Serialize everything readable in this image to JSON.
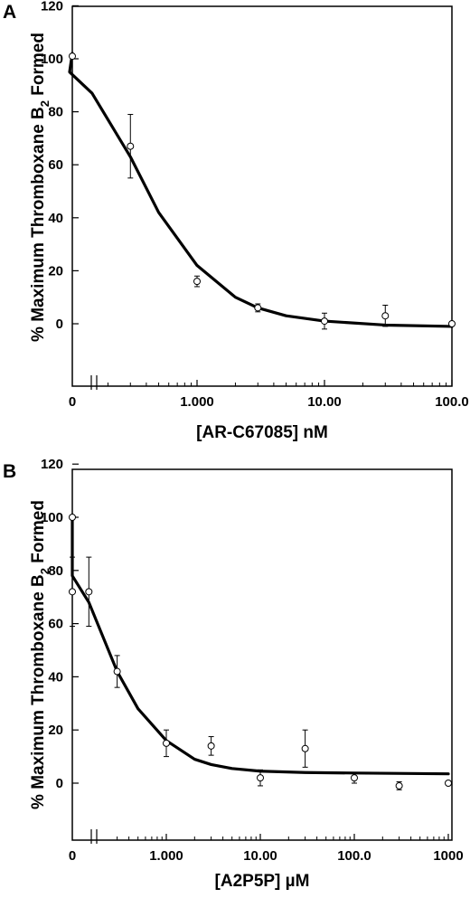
{
  "chart_data": [
    {
      "type": "scatter",
      "panel": "A",
      "xlabel": "[AR-C67085] nM",
      "ylabel": "% Maximum Thromboxane B2 Formed",
      "ylim": [
        -20,
        120
      ],
      "yticks": [
        0,
        20,
        40,
        60,
        80,
        100,
        120
      ],
      "x_scale": "log with axis break",
      "xticks": [
        {
          "value": 0,
          "label": "0"
        },
        {
          "value": 1,
          "label": "1.000"
        },
        {
          "value": 10,
          "label": "10.00"
        },
        {
          "value": 100,
          "label": "100.0"
        }
      ],
      "points": [
        {
          "x": 0,
          "y": 101,
          "err": 0
        },
        {
          "x": 0.3,
          "y": 67,
          "err": 12
        },
        {
          "x": 1,
          "y": 16,
          "err": 2
        },
        {
          "x": 3,
          "y": 6,
          "err": 1.5
        },
        {
          "x": 10,
          "y": 1,
          "err": 3
        },
        {
          "x": 30,
          "y": 3,
          "err": 4
        },
        {
          "x": 100,
          "y": 0,
          "err": 0
        }
      ],
      "fit_curve": [
        [
          0,
          102
        ],
        [
          0.1,
          95
        ],
        [
          0.15,
          87
        ],
        [
          0.3,
          63
        ],
        [
          0.5,
          42
        ],
        [
          1,
          22
        ],
        [
          2,
          10
        ],
        [
          3,
          6
        ],
        [
          5,
          3
        ],
        [
          10,
          1
        ],
        [
          30,
          -0.5
        ],
        [
          100,
          -1
        ]
      ],
      "grid": false
    },
    {
      "type": "scatter",
      "panel": "B",
      "xlabel": "[A2P5P] µM",
      "ylabel": "% Maximum Thromboxane B2 Formed",
      "ylim": [
        -20,
        120
      ],
      "yticks": [
        0,
        20,
        40,
        60,
        80,
        100,
        120
      ],
      "x_scale": "log with axis break",
      "xticks": [
        {
          "value": 0,
          "label": "0"
        },
        {
          "value": 1,
          "label": "1.000"
        },
        {
          "value": 10,
          "label": "10.00"
        },
        {
          "value": 100,
          "label": "100.0"
        },
        {
          "value": 1000,
          "label": "1000"
        }
      ],
      "points": [
        {
          "x": 0,
          "y": 100,
          "err": 0
        },
        {
          "x": 0.1,
          "y": 72,
          "err": 13
        },
        {
          "x": 0.15,
          "y": 72,
          "err": 13
        },
        {
          "x": 0.3,
          "y": 42,
          "err": 6
        },
        {
          "x": 1,
          "y": 15,
          "err": 5
        },
        {
          "x": 3,
          "y": 14,
          "err": 3.5
        },
        {
          "x": 10,
          "y": 2,
          "err": 3
        },
        {
          "x": 30,
          "y": 13,
          "err": 7
        },
        {
          "x": 100,
          "y": 2,
          "err": 2
        },
        {
          "x": 300,
          "y": -1,
          "err": 1.5
        },
        {
          "x": 1000,
          "y": 0,
          "err": 0
        }
      ],
      "fit_curve": [
        [
          0,
          100
        ],
        [
          0.1,
          78
        ],
        [
          0.15,
          68
        ],
        [
          0.3,
          42
        ],
        [
          0.5,
          28
        ],
        [
          1,
          16
        ],
        [
          2,
          9
        ],
        [
          3,
          7
        ],
        [
          5,
          5.5
        ],
        [
          10,
          4.5
        ],
        [
          30,
          4
        ],
        [
          100,
          3.8
        ],
        [
          1000,
          3.5
        ]
      ],
      "grid": false
    }
  ]
}
